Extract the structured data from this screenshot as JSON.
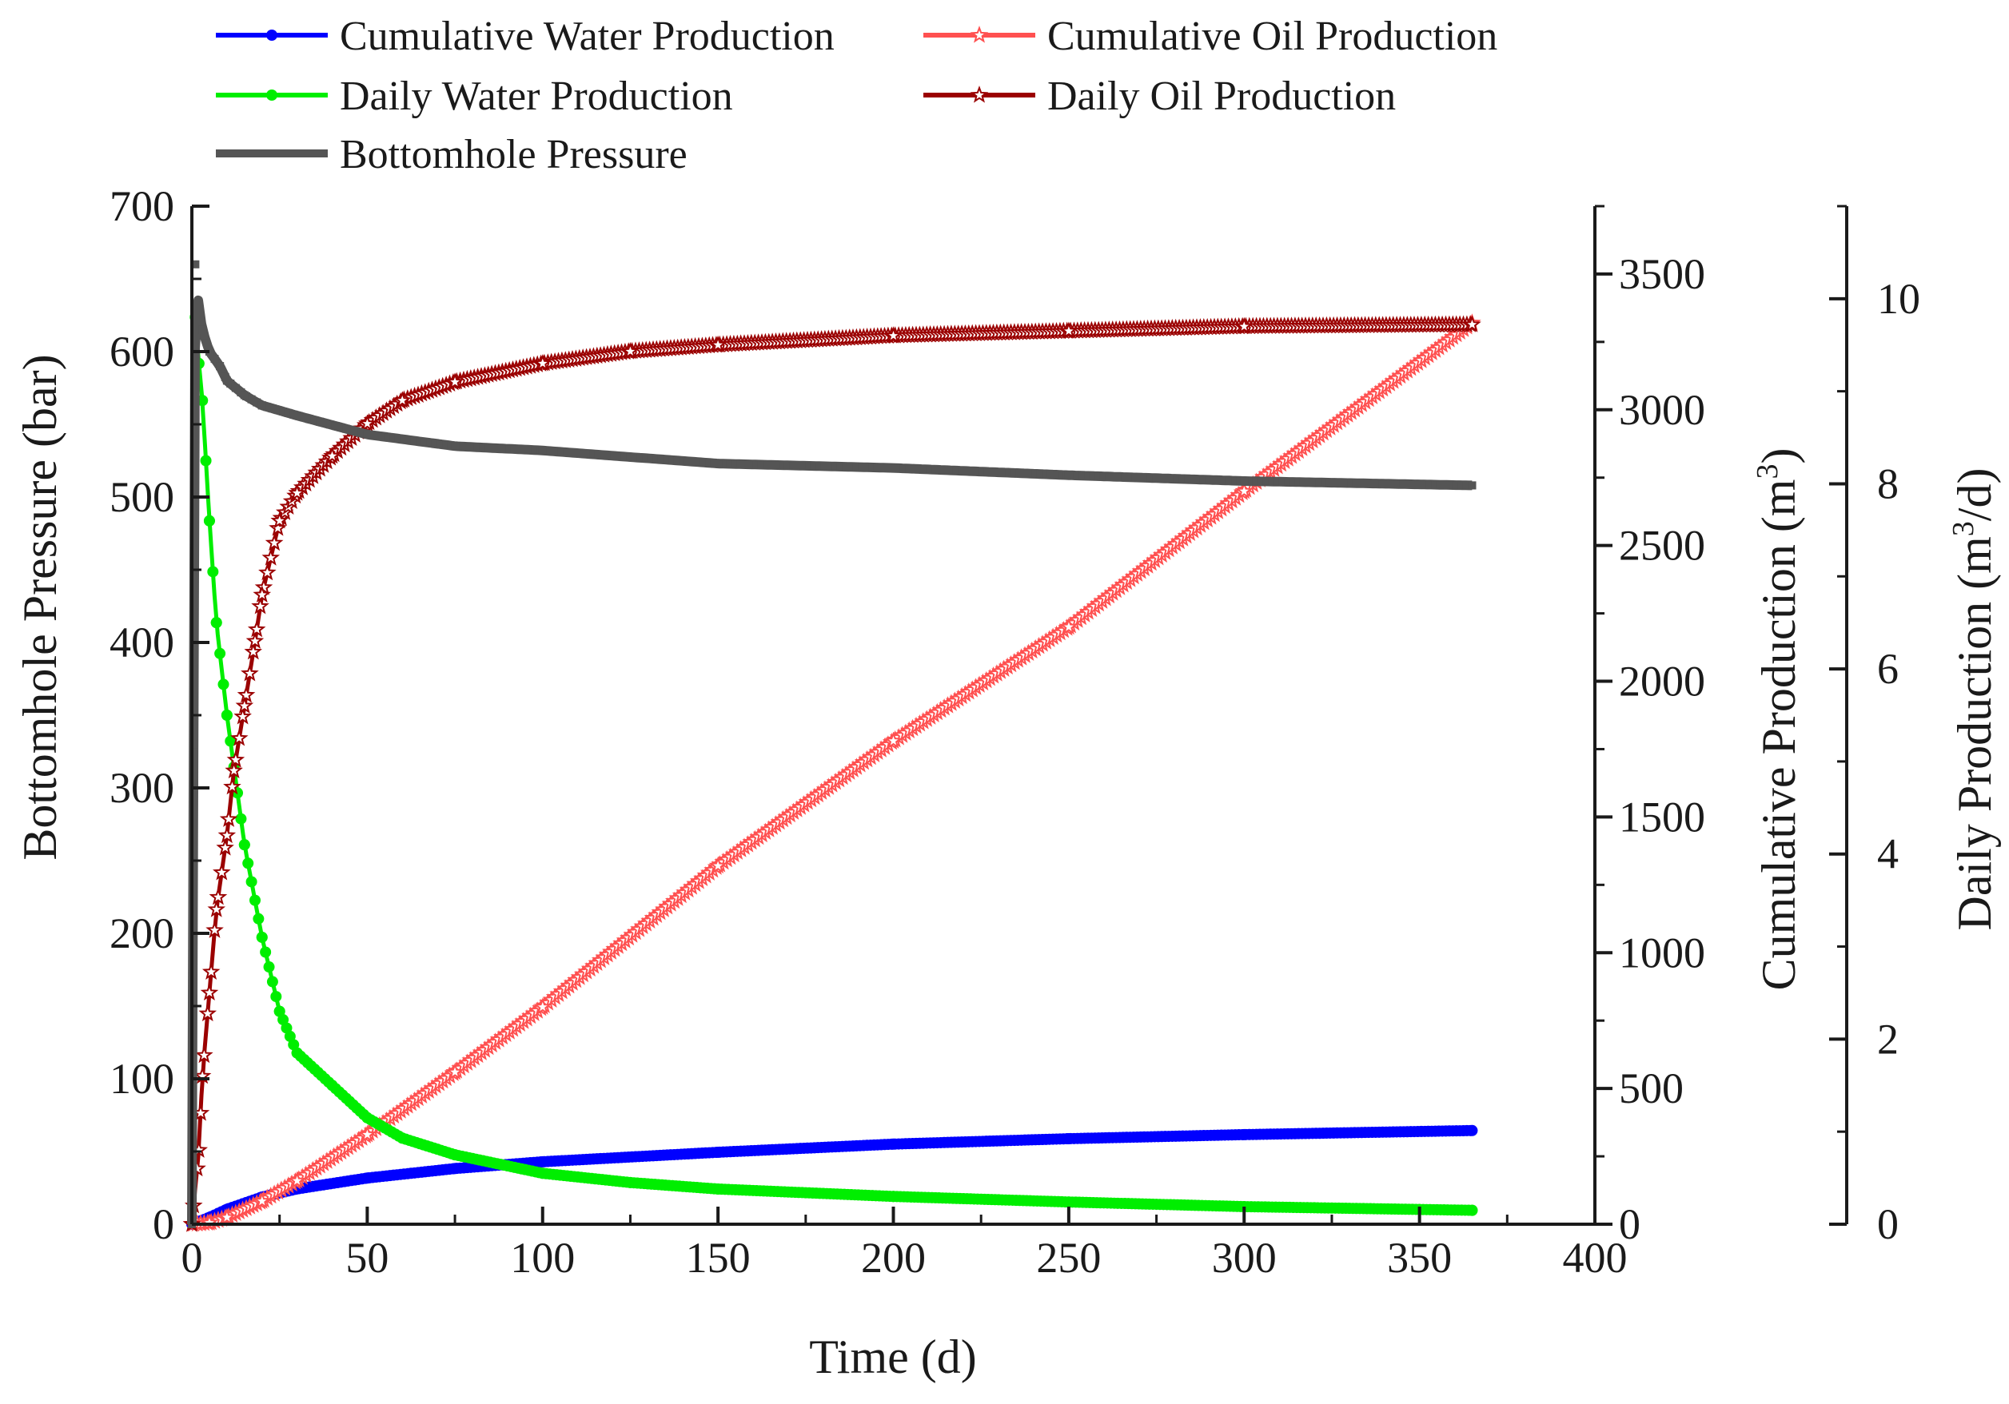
{
  "chart_data": {
    "type": "line",
    "title": "",
    "xlabel": "Time (d)",
    "ylabel_left": "Bottomhole Pressure (bar)",
    "ylabel_right1_prefix": "Cumulative Production (m",
    "ylabel_right1_sup": "3",
    "ylabel_right1_suffix": ")",
    "ylabel_right2_prefix": "Daily Production (m",
    "ylabel_right2_sup": "3",
    "ylabel_right2_suffix": "/d)",
    "xlim": [
      0,
      400
    ],
    "x_ticks": [
      "0",
      "50",
      "100",
      "150",
      "200",
      "250",
      "300",
      "350",
      "400"
    ],
    "ylim_left": [
      0,
      700
    ],
    "y_left_ticks": [
      "0",
      "100",
      "200",
      "300",
      "400",
      "500",
      "600",
      "700"
    ],
    "ylim_right1": [
      0,
      3750
    ],
    "y_right1_ticks": [
      "0",
      "500",
      "1000",
      "1500",
      "2000",
      "2500",
      "3000",
      "3500"
    ],
    "ylim_right2": [
      0,
      11
    ],
    "y_right2_ticks": [
      "0",
      "2",
      "4",
      "6",
      "8",
      "10"
    ],
    "legend_position": "top",
    "series": [
      {
        "name": "Cumulative Water Production",
        "axis": "right1",
        "color": "#0000ff",
        "marker": "circle",
        "x": [
          0,
          5,
          10,
          20,
          30,
          50,
          75,
          100,
          150,
          200,
          250,
          300,
          365
        ],
        "y": [
          0,
          25,
          55,
          100,
          130,
          170,
          205,
          230,
          265,
          295,
          315,
          330,
          345
        ]
      },
      {
        "name": "Cumulative Oil Production",
        "axis": "right1",
        "color": "#ff5050",
        "marker": "star-open",
        "x": [
          0,
          5,
          10,
          20,
          30,
          50,
          75,
          100,
          150,
          200,
          250,
          300,
          365
        ],
        "y": [
          0,
          5,
          25,
          85,
          160,
          330,
          560,
          800,
          1320,
          1780,
          2200,
          2700,
          3320
        ]
      },
      {
        "name": "Daily Water Production",
        "axis": "right2",
        "color": "#00ee00",
        "marker": "circle",
        "x": [
          1,
          2,
          3,
          5,
          7,
          10,
          15,
          20,
          25,
          30,
          40,
          50,
          60,
          75,
          100,
          125,
          150,
          200,
          250,
          300,
          365
        ],
        "y": [
          9.8,
          9.3,
          8.9,
          7.6,
          6.5,
          5.5,
          4.1,
          3.1,
          2.3,
          1.85,
          1.5,
          1.15,
          0.93,
          0.75,
          0.55,
          0.45,
          0.38,
          0.3,
          0.24,
          0.19,
          0.15
        ]
      },
      {
        "name": "Daily Oil Production",
        "axis": "right2",
        "color": "#9b0000",
        "marker": "star-open",
        "x": [
          0,
          2,
          3,
          5,
          7,
          10,
          12,
          15,
          18,
          20,
          25,
          30,
          40,
          50,
          60,
          75,
          100,
          125,
          150,
          200,
          250,
          300,
          365
        ],
        "y": [
          0,
          0.8,
          1.6,
          2.5,
          3.4,
          4.2,
          4.9,
          5.6,
          6.3,
          6.8,
          7.6,
          7.9,
          8.3,
          8.65,
          8.9,
          9.1,
          9.3,
          9.43,
          9.5,
          9.6,
          9.65,
          9.7,
          9.72
        ]
      },
      {
        "name": "Bottomhole Pressure",
        "axis": "left",
        "color": "#555555",
        "marker": "square",
        "x": [
          0,
          1,
          2,
          3,
          5,
          8,
          10,
          15,
          20,
          30,
          50,
          75,
          100,
          150,
          200,
          250,
          300,
          365
        ],
        "y": [
          0,
          660,
          630,
          615,
          600,
          590,
          580,
          570,
          563,
          556,
          543,
          535,
          532,
          523,
          520,
          515,
          511,
          508
        ]
      }
    ]
  }
}
